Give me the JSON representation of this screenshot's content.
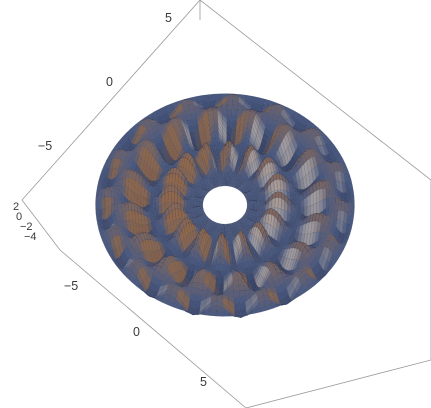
{
  "chart_data": {
    "type": "surface3d",
    "description_of_function": "radially symmetric rippled surface, z depends on radius and angle with about 16 petals, hole in the middle",
    "axes": {
      "axis_top_left": {
        "ticks": [
          "5",
          "0",
          "−5"
        ]
      },
      "axis_bottom_left": {
        "ticks": [
          "−5",
          "0",
          "5"
        ]
      },
      "axis_vertical": {
        "ticks": [
          "2",
          "0",
          "−2",
          "−4"
        ]
      }
    },
    "x_range": [
      -7,
      7
    ],
    "y_range": [
      -7,
      7
    ],
    "z_range": [
      -4,
      2
    ],
    "inner_radius": 1.2,
    "outer_radius": 7,
    "petals": 16,
    "colors": {
      "low": "#2f3a5c",
      "mid": "#4a5a82",
      "high": "#8a6a5a",
      "accent": "#a06a3c",
      "highlight": "#d7c8b8",
      "mesh": "#1e2438",
      "box": "#9a9a9a"
    }
  }
}
